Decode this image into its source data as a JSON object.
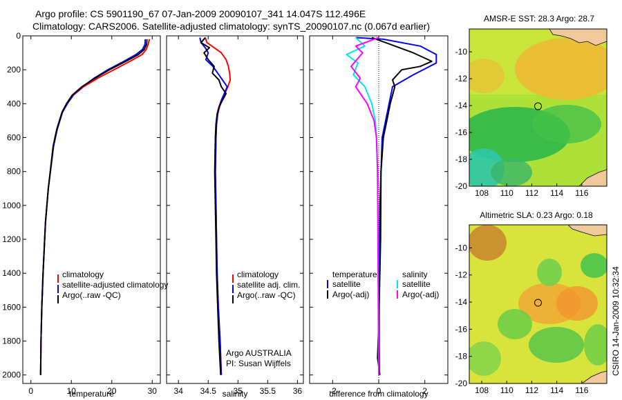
{
  "header": {
    "line1": "Argo profile: CS 5901190_67 07-Jan-2009 20090107_341 14.047S 112.496E",
    "line2": "Climatology: CARS2006. Satellite-adjusted climatology: synTS_20090107.nc (0.067d earlier)"
  },
  "footer": {
    "credit": "CSIRO 14-Jan-2009 10:32:34"
  },
  "colors": {
    "climatology": "#ff0000",
    "satellite": "#0000ff",
    "argo": "#000000",
    "argo_adj_salinity": "#ff00ff",
    "satellite_salinity": "#00e5ee"
  },
  "chart_data": [
    {
      "type": "line",
      "id": "temperature",
      "xlabel": "temperature",
      "ylabel": "",
      "xlim": [
        -2,
        32
      ],
      "ylim": [
        2050,
        0
      ],
      "xticks": [
        0,
        10,
        20,
        30
      ],
      "yticks": [
        0,
        200,
        400,
        600,
        800,
        1000,
        1200,
        1400,
        1600,
        1800,
        2000
      ],
      "legend": [
        "climatology",
        "satellite-adjusted climatology",
        "Argo(..raw -QC)"
      ],
      "series": [
        {
          "name": "climatology",
          "color": "#ff0000",
          "x": [
            29.3,
            29.0,
            28.5,
            27.5,
            24.5,
            20.5,
            16.5,
            13.0,
            10.5,
            9.0,
            7.8,
            6.5,
            5.6,
            4.3,
            3.6,
            3.0,
            2.7,
            2.5,
            2.4
          ],
          "y": [
            20,
            50,
            80,
            110,
            150,
            200,
            250,
            300,
            350,
            400,
            450,
            550,
            650,
            900,
            1100,
            1400,
            1600,
            1800,
            2000
          ]
        },
        {
          "name": "satellite-adjusted climatology",
          "color": "#0000ff",
          "x": [
            28.3,
            28.2,
            27.6,
            26.0,
            23.0,
            19.0,
            15.6,
            12.7,
            10.4,
            9.0,
            7.8,
            6.5,
            5.6,
            4.3,
            3.6,
            3.0,
            2.7,
            2.5,
            2.4
          ],
          "y": [
            20,
            50,
            80,
            110,
            150,
            200,
            250,
            300,
            350,
            400,
            450,
            550,
            650,
            900,
            1100,
            1400,
            1600,
            1800,
            2000
          ]
        },
        {
          "name": "Argo(..raw -QC)",
          "color": "#000000",
          "x": [
            28.7,
            28.6,
            28.0,
            26.6,
            23.5,
            19.4,
            15.8,
            12.6,
            10.2,
            8.8,
            7.7,
            6.4,
            5.5,
            4.3,
            3.6,
            3.0,
            2.7,
            2.5,
            2.4
          ],
          "y": [
            20,
            50,
            80,
            110,
            150,
            200,
            250,
            300,
            350,
            400,
            450,
            550,
            650,
            900,
            1100,
            1400,
            1600,
            1800,
            2000
          ]
        }
      ]
    },
    {
      "type": "line",
      "id": "salinity",
      "xlabel": "salinity",
      "xlim": [
        33.8,
        36.1
      ],
      "ylim": [
        2050,
        0
      ],
      "xticks": [
        34,
        34.5,
        35,
        35.5,
        36
      ],
      "legend": [
        "climatology",
        "satellite adj. clim.",
        "Argo(..raw -QC)"
      ],
      "annotations": [
        "Argo AUSTRALIA",
        "PI: Susan Wijffels"
      ],
      "series": [
        {
          "name": "climatology",
          "color": "#ff0000",
          "x": [
            34.45,
            34.48,
            34.6,
            34.72,
            34.8,
            34.84,
            34.86,
            34.87,
            34.83,
            34.78,
            34.73,
            34.69,
            34.66,
            34.64,
            34.63,
            34.62,
            34.63,
            34.64,
            34.65,
            34.67,
            34.7,
            34.72
          ],
          "y": [
            10,
            40,
            70,
            100,
            140,
            180,
            220,
            260,
            300,
            340,
            380,
            420,
            460,
            520,
            600,
            800,
            1000,
            1200,
            1400,
            1600,
            1800,
            2000
          ]
        },
        {
          "name": "satellite adj. clim.",
          "color": "#0000ff",
          "x": [
            34.36,
            34.38,
            34.45,
            34.5,
            34.46,
            34.58,
            34.66,
            34.74,
            34.82,
            34.77,
            34.72,
            34.68,
            34.66,
            34.64,
            34.63,
            34.62,
            34.63,
            34.64,
            34.65,
            34.67,
            34.7,
            34.72
          ],
          "y": [
            10,
            40,
            70,
            100,
            140,
            180,
            220,
            260,
            300,
            340,
            380,
            420,
            460,
            520,
            600,
            800,
            1000,
            1200,
            1400,
            1600,
            1800,
            2000
          ]
        },
        {
          "name": "Argo(..raw -QC)",
          "color": "#000000",
          "x": [
            34.45,
            34.38,
            34.52,
            34.43,
            34.5,
            34.6,
            34.57,
            34.68,
            34.72,
            34.8,
            34.74,
            34.68,
            34.65,
            34.63,
            34.62,
            34.61,
            34.62,
            34.63,
            34.64,
            34.66,
            34.68,
            34.71
          ],
          "y": [
            10,
            40,
            70,
            100,
            140,
            180,
            220,
            260,
            300,
            340,
            380,
            420,
            460,
            520,
            600,
            800,
            1000,
            1200,
            1400,
            1600,
            1800,
            2000
          ]
        }
      ]
    },
    {
      "type": "line",
      "id": "difference",
      "xlabel": "difference from climatology",
      "xlim": [
        -3.0,
        3.0
      ],
      "ylim": [
        2050,
        0
      ],
      "xticks": [
        -2,
        0,
        2
      ],
      "legend_headers": [
        "temperature",
        "salinity"
      ],
      "legend": [
        "satellite",
        "Argo(-adj)",
        "satellite",
        "Argo(-adj)"
      ],
      "series": [
        {
          "name": "satellite",
          "group": "temperature",
          "color": "#0000ff",
          "x": [
            -1.0,
            0.2,
            1.8,
            2.5,
            2.5,
            1.5,
            0.6,
            0.45,
            0.3,
            0.15,
            0.1,
            0.05,
            0.02,
            0.02,
            0.03
          ],
          "y": [
            10,
            20,
            60,
            110,
            160,
            230,
            300,
            400,
            500,
            600,
            800,
            1000,
            1400,
            1800,
            2000
          ]
        },
        {
          "name": "Argo(-adj)",
          "group": "temperature",
          "color": "#000000",
          "x": [
            -0.3,
            0.3,
            1.5,
            2.3,
            1.8,
            1.0,
            0.6,
            0.7,
            0.5,
            0.35,
            0.2,
            0.1,
            0.08,
            0.0,
            -0.05,
            0.05
          ],
          "y": [
            10,
            40,
            100,
            150,
            180,
            200,
            260,
            300,
            400,
            500,
            600,
            800,
            1200,
            1700,
            1900,
            2000
          ]
        },
        {
          "name": "satellite",
          "group": "salinity",
          "color": "#00e5ee",
          "x": [
            -1.0,
            -0.6,
            -1.4,
            -0.9,
            -1.1,
            -0.6,
            -0.3,
            -0.15,
            -0.1,
            -0.05,
            -0.02,
            0.0
          ],
          "y": [
            10,
            60,
            110,
            160,
            230,
            300,
            400,
            500,
            600,
            800,
            1200,
            2000
          ]
        },
        {
          "name": "Argo(-adj)",
          "group": "salinity",
          "color": "#ff00ff",
          "x": [
            0.0,
            -1.0,
            -0.7,
            -1.2,
            -0.8,
            -1.0,
            -0.5,
            -0.2,
            -0.1,
            -0.05,
            0.0
          ],
          "y": [
            10,
            60,
            100,
            180,
            250,
            300,
            400,
            500,
            600,
            800,
            2000
          ]
        }
      ]
    },
    {
      "type": "heatmap",
      "id": "sst_map",
      "title": "AMSR-E SST: 28.3 Argo: 28.7",
      "xlim": [
        107,
        118
      ],
      "ylim": [
        -20,
        -8.3
      ],
      "xticks": [
        108,
        110,
        112,
        114,
        116
      ],
      "yticks": [
        -10,
        -12,
        -14,
        -16,
        -18,
        -20
      ],
      "marker": {
        "lon": 112.5,
        "lat": -14.05
      }
    },
    {
      "type": "heatmap",
      "id": "sla_map",
      "title": "Altimetric SLA: 0.23 Argo: 0.18",
      "xlim": [
        107,
        118
      ],
      "ylim": [
        -20,
        -8.3
      ],
      "xticks": [
        108,
        110,
        112,
        114,
        116
      ],
      "yticks": [
        -10,
        -12,
        -14,
        -16,
        -18,
        -20
      ],
      "marker": {
        "lon": 112.5,
        "lat": -14.05
      }
    }
  ]
}
